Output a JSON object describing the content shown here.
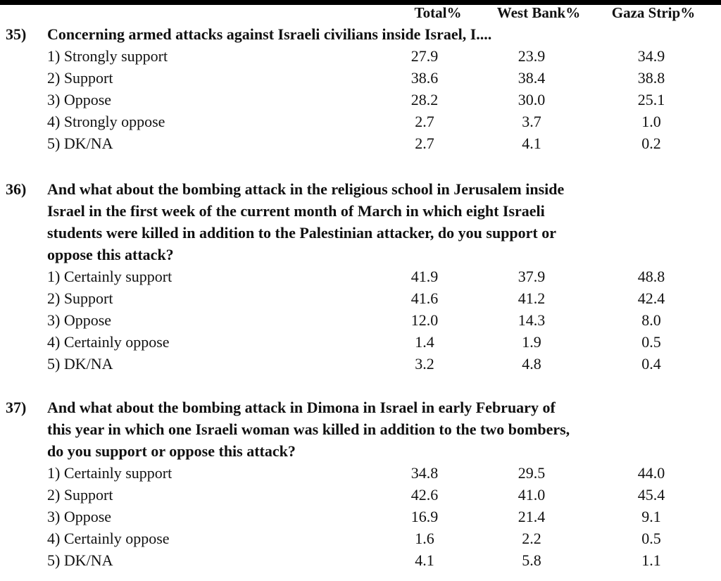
{
  "columns": [
    "Total%",
    "West Bank%",
    "Gaza Strip%"
  ],
  "questions": [
    {
      "number": "35)",
      "text_lines": [
        "Concerning armed attacks against Israeli civilians inside Israel, I...."
      ],
      "options": [
        {
          "label": "1) Strongly support",
          "values": [
            "27.9",
            "23.9",
            "34.9"
          ]
        },
        {
          "label": "2) Support",
          "values": [
            "38.6",
            "38.4",
            "38.8"
          ]
        },
        {
          "label": "3) Oppose",
          "values": [
            "28.2",
            "30.0",
            "25.1"
          ]
        },
        {
          "label": "4) Strongly oppose",
          "values": [
            "2.7",
            "3.7",
            "1.0"
          ]
        },
        {
          "label": "5) DK/NA",
          "values": [
            "2.7",
            "4.1",
            "0.2"
          ]
        }
      ]
    },
    {
      "number": "36)",
      "text_lines": [
        "And what about the bombing attack in the religious school in Jerusalem inside",
        "Israel in the first week of the current month of March in which eight Israeli",
        "students were killed in addition to the Palestinian attacker, do you support or",
        "oppose this attack?"
      ],
      "options": [
        {
          "label": "1) Certainly support",
          "values": [
            "41.9",
            "37.9",
            "48.8"
          ]
        },
        {
          "label": "2) Support",
          "values": [
            "41.6",
            "41.2",
            "42.4"
          ]
        },
        {
          "label": "3) Oppose",
          "values": [
            "12.0",
            "14.3",
            "8.0"
          ]
        },
        {
          "label": "4) Certainly oppose",
          "values": [
            "1.4",
            "1.9",
            "0.5"
          ]
        },
        {
          "label": "5) DK/NA",
          "values": [
            "3.2",
            "4.8",
            "0.4"
          ]
        }
      ]
    },
    {
      "number": "37)",
      "text_lines": [
        "And what about the bombing attack in Dimona in Israel in early February of",
        "this year in which one Israeli woman was killed in addition to the two bombers,",
        "do you support or oppose this attack?"
      ],
      "options": [
        {
          "label": "1) Certainly support",
          "values": [
            "34.8",
            "29.5",
            "44.0"
          ]
        },
        {
          "label": "2) Support",
          "values": [
            "42.6",
            "41.0",
            "45.4"
          ]
        },
        {
          "label": "3) Oppose",
          "values": [
            "16.9",
            "21.4",
            "9.1"
          ]
        },
        {
          "label": "4) Certainly oppose",
          "values": [
            "1.6",
            "2.2",
            "0.5"
          ]
        },
        {
          "label": "5) DK/NA",
          "values": [
            "4.1",
            "5.8",
            "1.1"
          ]
        }
      ]
    }
  ]
}
